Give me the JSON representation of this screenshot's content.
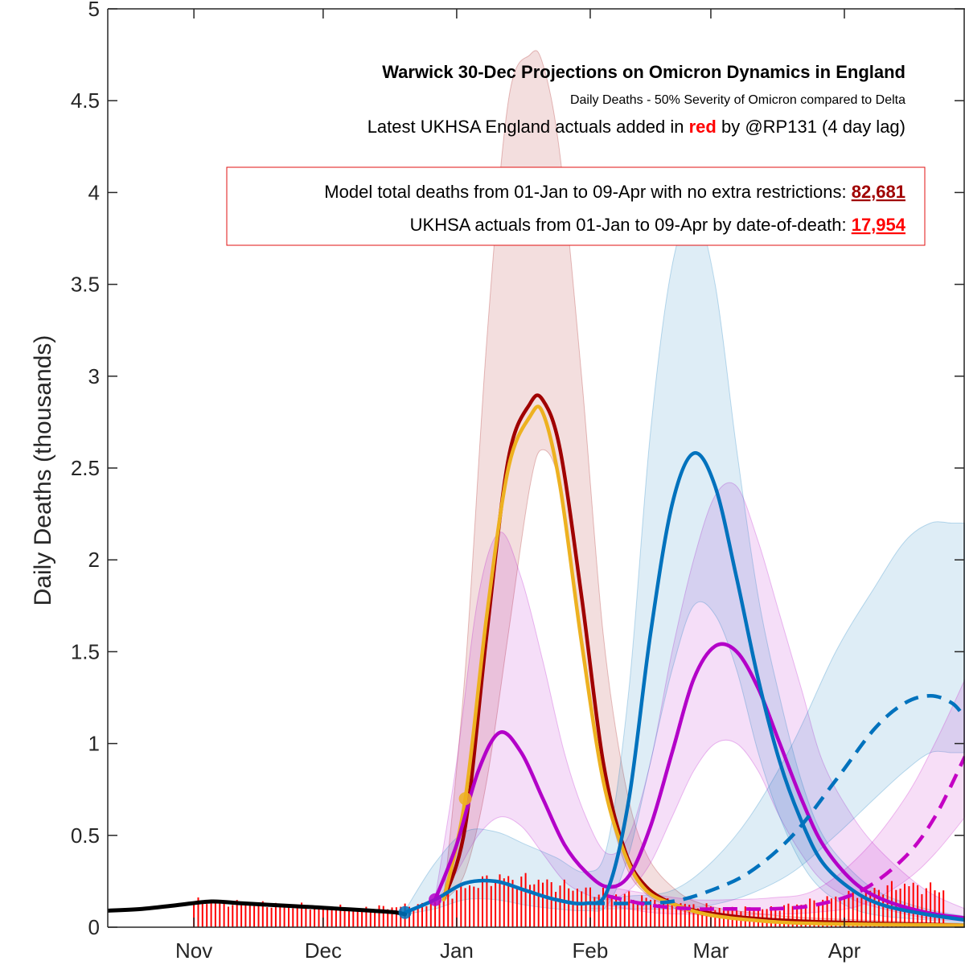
{
  "chart_data": {
    "type": "line",
    "title": "Warwick 30-Dec Projections on Omicron Dynamics in England",
    "subtitle": "Daily Deaths - 50% Severity of Omicron compared to Delta",
    "note_prefix": "Latest UKHSA England actuals added in ",
    "note_red": "red",
    "note_suffix": " by @RP131 (4 day lag)",
    "ylabel": "Daily Deaths (thousands)",
    "xlabel": "",
    "ylim": [
      0,
      5
    ],
    "y_ticks": [
      0,
      0.5,
      1,
      1.5,
      2,
      2.5,
      3,
      3.5,
      4,
      4.5,
      5
    ],
    "y_tick_labels": [
      "0",
      "0.5",
      "1",
      "1.5",
      "2",
      "2.5",
      "3",
      "3.5",
      "4",
      "4.5",
      "5"
    ],
    "x_ticks": [
      {
        "label": "Nov",
        "date": "2021-11-01"
      },
      {
        "label": "Dec",
        "date": "2021-12-01"
      },
      {
        "label": "Jan",
        "date": "2022-01-01"
      },
      {
        "label": "Feb",
        "date": "2022-02-01"
      },
      {
        "label": "Mar",
        "date": "2022-03-01"
      },
      {
        "label": "Apr",
        "date": "2022-04-01"
      }
    ],
    "xlim": [
      "2021-10-12",
      "2022-04-29"
    ],
    "grid": false,
    "annotation_box": {
      "line1_text": "Model total deaths from 01-Jan to 09-Apr with no extra restrictions: ",
      "line1_value": "82,681",
      "line2_text": "UKHSA actuals from 01-Jan to 09-Apr by date-of-death: ",
      "line2_value": "17,954"
    },
    "colors": {
      "dark_red": "#a00000",
      "orange": "#edb120",
      "blue": "#0072bd",
      "purple": "#b300c8",
      "magenta": "#c400c4",
      "actual_bars": "#ff0000",
      "historical": "#000000"
    },
    "series": [
      {
        "role": "model",
        "color": "dark_red",
        "style": "solid",
        "x": [
          "2021-12-29",
          "2022-01-03",
          "2022-01-08",
          "2022-01-13",
          "2022-01-18",
          "2022-01-21",
          "2022-01-25",
          "2022-01-30",
          "2022-02-04",
          "2022-02-09",
          "2022-02-14",
          "2022-02-21",
          "2022-02-28",
          "2022-03-10",
          "2022-03-25",
          "2022-04-29"
        ],
        "values": [
          0.15,
          0.55,
          1.6,
          2.55,
          2.85,
          2.87,
          2.6,
          1.8,
          0.9,
          0.42,
          0.22,
          0.12,
          0.08,
          0.05,
          0.03,
          0.01
        ],
        "band_low": [
          0.14,
          0.3,
          0.8,
          1.6,
          2.4,
          2.6,
          2.4,
          1.6,
          0.8,
          0.35,
          0.18,
          0.1,
          0.06,
          0.04,
          0.02,
          0.01
        ],
        "band_high": [
          0.16,
          1.4,
          3.2,
          4.5,
          4.75,
          4.7,
          4.2,
          3.0,
          1.6,
          0.8,
          0.4,
          0.2,
          0.12,
          0.08,
          0.05,
          0.02
        ]
      },
      {
        "role": "model",
        "color": "orange",
        "style": "solid",
        "x": [
          "2021-12-29",
          "2022-01-03",
          "2022-01-08",
          "2022-01-13",
          "2022-01-18",
          "2022-01-21",
          "2022-01-25",
          "2022-01-30",
          "2022-02-04",
          "2022-02-09",
          "2022-02-14",
          "2022-02-21",
          "2022-02-28",
          "2022-03-10",
          "2022-03-25",
          "2022-04-29"
        ],
        "values": [
          0.15,
          0.7,
          1.7,
          2.5,
          2.78,
          2.8,
          2.4,
          1.55,
          0.8,
          0.4,
          0.2,
          0.12,
          0.07,
          0.04,
          0.02,
          0.01
        ]
      },
      {
        "role": "model",
        "color": "purple",
        "style": "solid",
        "x": [
          "2021-12-27",
          "2022-01-01",
          "2022-01-06",
          "2022-01-11",
          "2022-01-16",
          "2022-01-21",
          "2022-01-26",
          "2022-01-31",
          "2022-02-05",
          "2022-02-10",
          "2022-02-15",
          "2022-02-20",
          "2022-02-25",
          "2022-03-02",
          "2022-03-07",
          "2022-03-12",
          "2022-03-17",
          "2022-03-22",
          "2022-03-27",
          "2022-04-03",
          "2022-04-10",
          "2022-04-20",
          "2022-04-29"
        ],
        "values": [
          0.15,
          0.45,
          0.85,
          1.06,
          0.95,
          0.7,
          0.45,
          0.3,
          0.22,
          0.28,
          0.55,
          0.95,
          1.35,
          1.53,
          1.5,
          1.3,
          1.0,
          0.7,
          0.45,
          0.25,
          0.15,
          0.08,
          0.05
        ],
        "band_low": [
          0.14,
          0.3,
          0.5,
          0.6,
          0.55,
          0.4,
          0.25,
          0.18,
          0.15,
          0.2,
          0.35,
          0.6,
          0.85,
          1.0,
          1.0,
          0.85,
          0.6,
          0.4,
          0.25,
          0.15,
          0.1,
          0.05,
          0.03
        ],
        "band_high": [
          0.16,
          0.9,
          1.8,
          2.15,
          1.9,
          1.45,
          0.95,
          0.6,
          0.4,
          0.5,
          0.9,
          1.5,
          2.0,
          2.35,
          2.4,
          2.1,
          1.7,
          1.3,
          0.9,
          0.6,
          0.4,
          0.2,
          0.1
        ]
      },
      {
        "role": "model",
        "color": "blue",
        "style": "solid",
        "x": [
          "2021-12-20",
          "2021-12-27",
          "2022-01-03",
          "2022-01-10",
          "2022-01-17",
          "2022-01-24",
          "2022-01-31",
          "2022-02-05",
          "2022-02-10",
          "2022-02-15",
          "2022-02-20",
          "2022-02-25",
          "2022-03-02",
          "2022-03-07",
          "2022-03-12",
          "2022-03-17",
          "2022-03-22",
          "2022-03-27",
          "2022-04-03",
          "2022-04-10",
          "2022-04-20",
          "2022-04-29"
        ],
        "values": [
          0.08,
          0.15,
          0.24,
          0.25,
          0.2,
          0.15,
          0.13,
          0.2,
          0.7,
          1.6,
          2.3,
          2.58,
          2.4,
          1.9,
          1.35,
          0.9,
          0.58,
          0.35,
          0.2,
          0.12,
          0.07,
          0.04
        ],
        "band_low": [
          0.07,
          0.1,
          0.15,
          0.15,
          0.12,
          0.1,
          0.09,
          0.12,
          0.4,
          0.9,
          1.4,
          1.75,
          1.7,
          1.4,
          0.95,
          0.6,
          0.35,
          0.2,
          0.1,
          0.06,
          0.04,
          0.02
        ],
        "band_high": [
          0.09,
          0.35,
          0.52,
          0.52,
          0.45,
          0.38,
          0.3,
          0.45,
          1.3,
          2.7,
          3.6,
          3.9,
          3.5,
          2.6,
          1.8,
          1.25,
          0.8,
          0.5,
          0.3,
          0.18,
          0.1,
          0.06
        ]
      },
      {
        "role": "model",
        "color": "blue",
        "style": "dashed",
        "x": [
          "2022-02-01",
          "2022-02-10",
          "2022-02-20",
          "2022-03-01",
          "2022-03-10",
          "2022-03-20",
          "2022-03-30",
          "2022-04-08",
          "2022-04-15",
          "2022-04-21",
          "2022-04-26",
          "2022-04-29"
        ],
        "values": [
          0.13,
          0.13,
          0.14,
          0.2,
          0.3,
          0.5,
          0.8,
          1.08,
          1.22,
          1.26,
          1.22,
          1.14
        ],
        "band_low": [
          0.1,
          0.1,
          0.1,
          0.12,
          0.18,
          0.3,
          0.5,
          0.7,
          0.85,
          0.95,
          0.95,
          0.95
        ],
        "band_high": [
          0.16,
          0.17,
          0.2,
          0.35,
          0.6,
          1.0,
          1.5,
          1.85,
          2.1,
          2.2,
          2.2,
          2.2
        ]
      },
      {
        "role": "model",
        "color": "magenta",
        "style": "dashed",
        "x": [
          "2022-02-05",
          "2022-02-15",
          "2022-02-25",
          "2022-03-05",
          "2022-03-15",
          "2022-03-25",
          "2022-04-05",
          "2022-04-15",
          "2022-04-22",
          "2022-04-29"
        ],
        "values": [
          0.17,
          0.12,
          0.1,
          0.1,
          0.1,
          0.12,
          0.2,
          0.38,
          0.6,
          0.93
        ],
        "band_low": [
          0.12,
          0.08,
          0.07,
          0.07,
          0.07,
          0.08,
          0.12,
          0.25,
          0.4,
          0.6
        ],
        "band_high": [
          0.22,
          0.18,
          0.15,
          0.15,
          0.16,
          0.2,
          0.4,
          0.7,
          1.0,
          1.35
        ]
      },
      {
        "role": "historical",
        "color": "historical",
        "style": "solid",
        "x": [
          "2021-10-12",
          "2021-10-20",
          "2021-10-28",
          "2021-11-05",
          "2021-11-12",
          "2021-11-20",
          "2021-11-28",
          "2021-12-05",
          "2021-12-12",
          "2021-12-18",
          "2021-12-20"
        ],
        "values": [
          0.09,
          0.1,
          0.12,
          0.14,
          0.13,
          0.12,
          0.11,
          0.1,
          0.09,
          0.08,
          0.07
        ]
      },
      {
        "role": "actuals",
        "color": "actual_bars",
        "style": "bars",
        "x_start": "2021-11-01",
        "x_end": "2022-04-24",
        "profile_x": [
          "2021-11-01",
          "2021-11-20",
          "2021-12-10",
          "2021-12-25",
          "2022-01-01",
          "2022-01-10",
          "2022-01-20",
          "2022-01-31",
          "2022-02-10",
          "2022-02-20",
          "2022-03-05",
          "2022-03-15",
          "2022-03-25",
          "2022-04-05",
          "2022-04-15",
          "2022-04-24"
        ],
        "profile_values": [
          0.14,
          0.12,
          0.1,
          0.12,
          0.2,
          0.27,
          0.25,
          0.2,
          0.17,
          0.13,
          0.1,
          0.1,
          0.14,
          0.19,
          0.23,
          0.2
        ]
      }
    ],
    "markers": [
      {
        "date": "2022-01-03",
        "value": 0.7,
        "color": "orange"
      },
      {
        "date": "2021-12-27",
        "value": 0.15,
        "color": "purple"
      },
      {
        "date": "2021-12-20",
        "value": 0.08,
        "color": "blue"
      }
    ]
  }
}
